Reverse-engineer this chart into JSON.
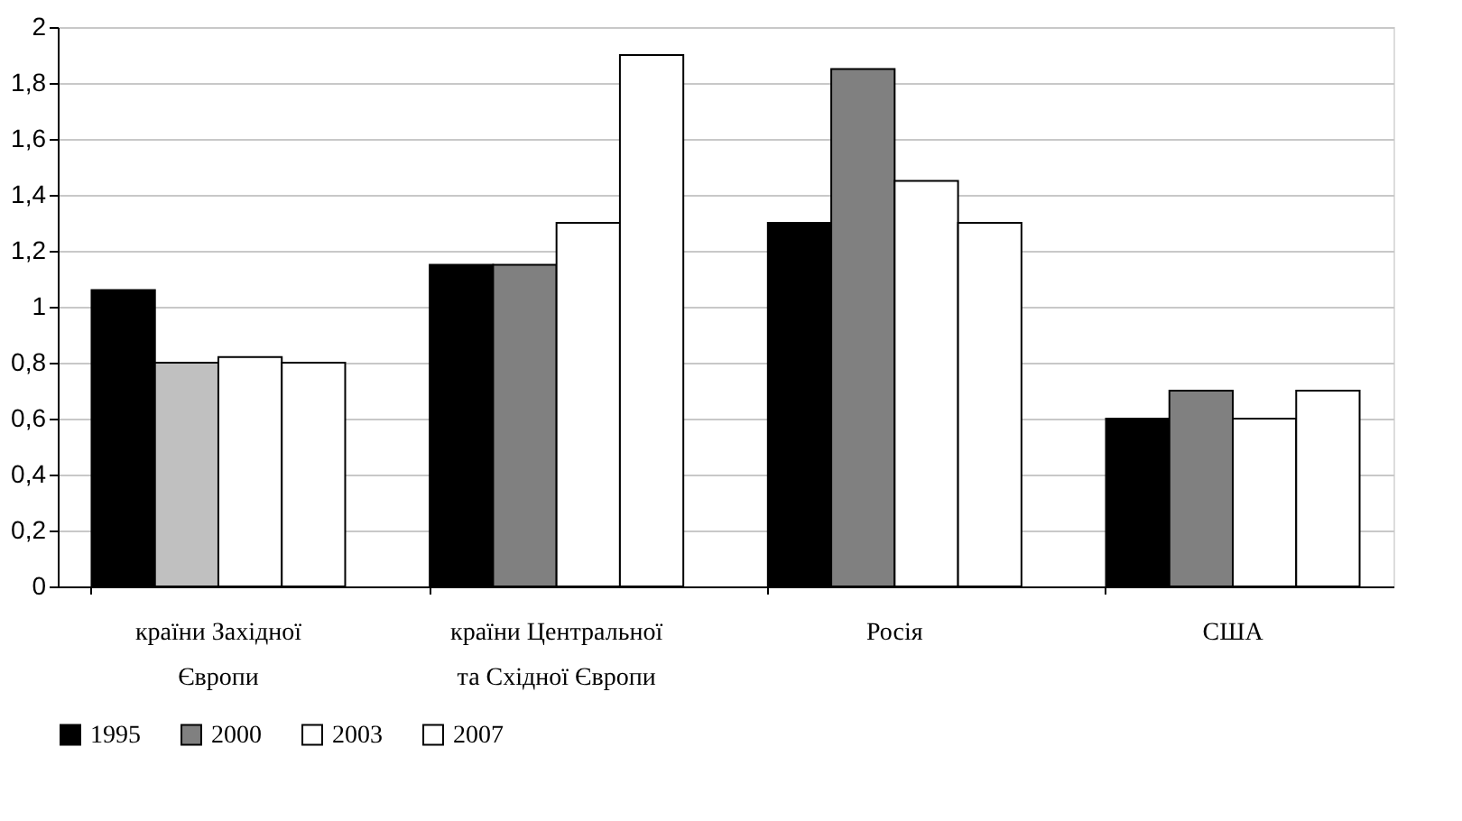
{
  "chart_data": {
    "type": "bar",
    "categories": [
      "країни Західної\nЄвропи",
      "країни Центральної\nта Східної Європи",
      "Росія",
      "США"
    ],
    "series": [
      {
        "name": "1995",
        "color": "#000000",
        "values": [
          1.06,
          1.15,
          1.3,
          0.6
        ]
      },
      {
        "name": "2000",
        "color": "#808080",
        "colors": [
          "#c0c0c0",
          "#808080",
          "#808080",
          "#808080"
        ],
        "values": [
          0.8,
          1.15,
          1.85,
          0.7
        ]
      },
      {
        "name": "2003",
        "color": "#ffffff",
        "values": [
          0.82,
          1.3,
          1.45,
          0.6
        ]
      },
      {
        "name": "2007",
        "color": "#ffffff",
        "values": [
          0.8,
          1.9,
          1.3,
          0.7
        ]
      }
    ],
    "ylim": [
      0,
      2
    ],
    "yticks": [
      0,
      {
        "value": 0.2,
        "label": "0,2"
      },
      {
        "value": 0.4,
        "label": "0,4"
      },
      {
        "value": 0.6,
        "label": "0,6"
      },
      {
        "value": 0.8,
        "label": "0,8"
      },
      1,
      {
        "value": 1.2,
        "label": "1,2"
      },
      {
        "value": 1.4,
        "label": "1,4"
      },
      {
        "value": 1.6,
        "label": "1,6"
      },
      {
        "value": 1.8,
        "label": "1,8"
      },
      2
    ],
    "grid": "y",
    "legend": "bottom"
  }
}
